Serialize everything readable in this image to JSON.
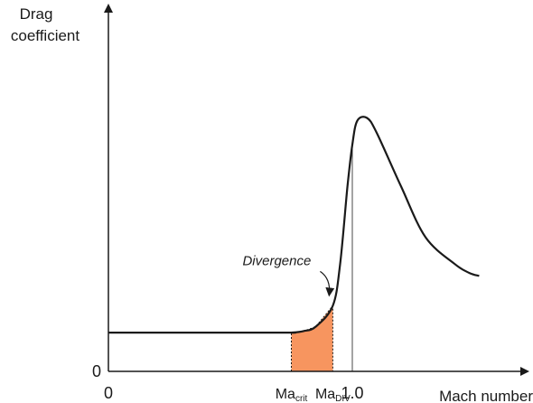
{
  "chart_data": {
    "type": "line",
    "title": "",
    "ylabel_lines": [
      "Drag",
      "coefficient"
    ],
    "xlabel": "Mach number",
    "xlim": [
      0,
      1.6
    ],
    "ylim": [
      0,
      1.0
    ],
    "x_tick_labels": [
      {
        "x": 0,
        "main": "0",
        "sub": ""
      },
      {
        "x": 0.75,
        "main": "Ma",
        "sub": "crit"
      },
      {
        "x": 0.92,
        "main": "Ma",
        "sub": "DIV"
      },
      {
        "x": 1.0,
        "main": "1.0",
        "sub": ""
      }
    ],
    "y_tick_labels": [
      {
        "y": 0,
        "label": "0"
      }
    ],
    "series": [
      {
        "points": [
          [
            0.0,
            0.13
          ],
          [
            0.7,
            0.13
          ],
          [
            0.75,
            0.13
          ],
          [
            0.8,
            0.135
          ],
          [
            0.85,
            0.15
          ],
          [
            0.92,
            0.22
          ],
          [
            0.95,
            0.36
          ],
          [
            0.98,
            0.62
          ],
          [
            1.0,
            0.76
          ],
          [
            1.02,
            0.84
          ],
          [
            1.06,
            0.85
          ],
          [
            1.1,
            0.8
          ],
          [
            1.2,
            0.62
          ],
          [
            1.3,
            0.45
          ],
          [
            1.42,
            0.36
          ],
          [
            1.48,
            0.33
          ],
          [
            1.52,
            0.32
          ]
        ]
      }
    ],
    "shaded_region": {
      "x0": 0.75,
      "x1": 0.92,
      "color": "#f7955f"
    },
    "reference_line_x": 1.0,
    "annotation": {
      "text": "Divergence",
      "points_to_x": 0.92
    },
    "grid": false
  }
}
